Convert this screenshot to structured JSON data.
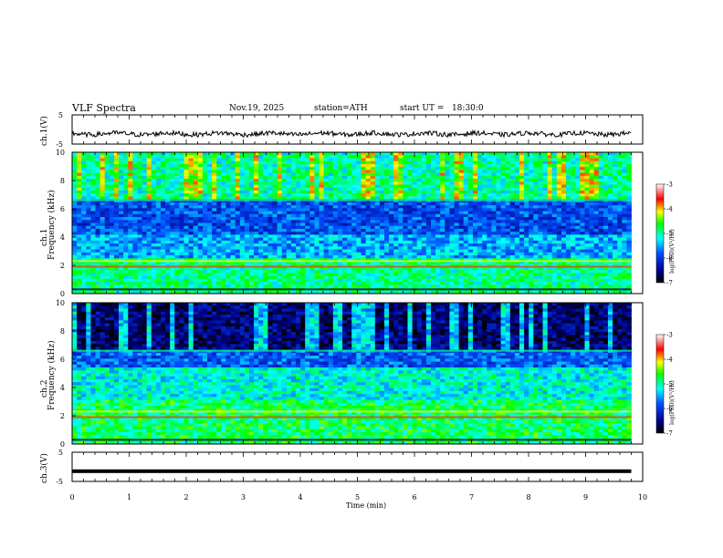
{
  "header": {
    "title": "VLF Spectra",
    "date": "Nov.19, 2025",
    "station": "station=ATH",
    "start": "start UT =   18:30:0"
  },
  "panels": {
    "ch1_wave_label": "ch.1(V)",
    "ch1_spec_label_top": "ch.1",
    "ch1_spec_label_bottom": "Frequency (kHz)",
    "ch2_spec_label_top": "ch.2",
    "ch2_spec_label_bottom": "Frequency (kHz)",
    "ch3_wave_label": "ch.3(V)",
    "colorbar_label": "log(PSD)(V²/Hz)"
  },
  "colors": {
    "spec_low": "#00008b",
    "spec_mid": "#00ffff",
    "spec_high": "#ff0000",
    "spec_top": "#ffffff"
  },
  "chart_data": {
    "type": "heatmap",
    "title": "VLF Spectra",
    "xlabel": "Time (min)",
    "xlim": [
      0,
      10
    ],
    "x_ticks": [
      "0",
      "1",
      "2",
      "3",
      "4",
      "5",
      "6",
      "7",
      "8",
      "9",
      "10"
    ],
    "data_end_min": 9.8,
    "wave_ch1": {
      "ylabel": "ch.1(V)",
      "ylim": [
        -5,
        5
      ],
      "y_ticks": [
        "5",
        "-5"
      ]
    },
    "spec_ch1": {
      "ylabel": "Frequency (kHz)",
      "ylim": [
        0,
        10
      ],
      "y_ticks": [
        "0",
        "2",
        "4",
        "6",
        "8",
        "10"
      ],
      "colorbar": {
        "label": "log(PSD)(V²/Hz)",
        "range": [
          -7,
          -3
        ],
        "ticks": [
          "-3",
          "-4",
          "-5",
          "-6",
          "-7"
        ]
      }
    },
    "spec_ch2": {
      "ylabel": "Frequency (kHz)",
      "ylim": [
        0,
        10
      ],
      "y_ticks": [
        "0",
        "2",
        "4",
        "6",
        "8",
        "10"
      ],
      "colorbar": {
        "label": "log(PSD)(V²/Hz)",
        "range": [
          -7,
          -3
        ],
        "ticks": [
          "-3",
          "-4",
          "-5",
          "-6",
          "-7"
        ]
      }
    },
    "wave_ch3": {
      "ylabel": "ch.3(V)",
      "ylim": [
        -5,
        5
      ],
      "y_ticks": [
        "5",
        "-5"
      ]
    }
  }
}
